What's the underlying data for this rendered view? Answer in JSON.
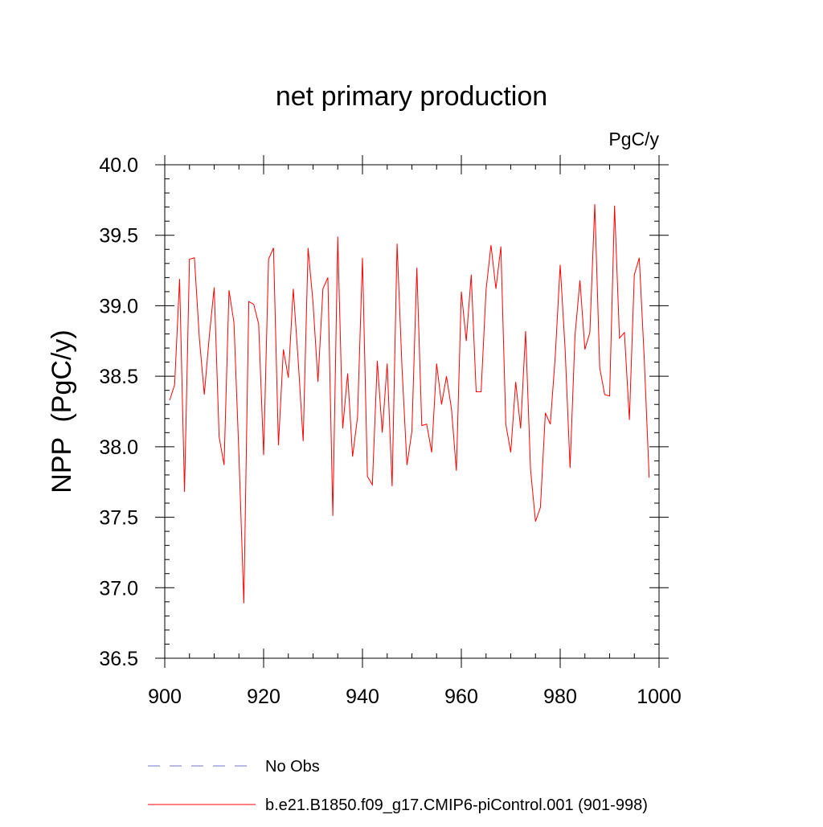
{
  "colors": {
    "series_line": "#ff0000",
    "obs_line": "#7070c0",
    "axis": "#000000",
    "background": "#ffffff"
  },
  "legend": {
    "obs_label": "No Obs",
    "model_label": "b.e21.B1850.f09_g17.CMIP6-piControl.001 (901-998)"
  },
  "chart_data": {
    "type": "line",
    "title": "net primary production",
    "units_label": "PgC/y",
    "xlabel": "",
    "ylabel": "NPP  (PgC/y)",
    "xlim": [
      900,
      1000
    ],
    "ylim": [
      36.5,
      40.0
    ],
    "x_ticks": [
      900,
      920,
      940,
      960,
      980,
      1000
    ],
    "x_tick_labels": [
      "900",
      "920",
      "940",
      "960",
      "980",
      "1000"
    ],
    "y_ticks": [
      36.5,
      37.0,
      37.5,
      38.0,
      38.5,
      39.0,
      39.5,
      40.0
    ],
    "y_tick_labels": [
      "36.5",
      "37.0",
      "37.5",
      "38.0",
      "38.5",
      "39.0",
      "39.5",
      "40.0"
    ],
    "grid": false,
    "legend_position": "bottom",
    "series": [
      {
        "name": "b.e21.B1850.f09_g17.CMIP6-piControl.001 (901-998)",
        "x": [
          901,
          902,
          903,
          904,
          905,
          906,
          907,
          908,
          909,
          910,
          911,
          912,
          913,
          914,
          915,
          916,
          917,
          918,
          919,
          920,
          921,
          922,
          923,
          924,
          925,
          926,
          927,
          928,
          929,
          930,
          931,
          932,
          933,
          934,
          935,
          936,
          937,
          938,
          939,
          940,
          941,
          942,
          943,
          944,
          945,
          946,
          947,
          948,
          949,
          950,
          951,
          952,
          953,
          954,
          955,
          956,
          957,
          958,
          959,
          960,
          961,
          962,
          963,
          964,
          965,
          966,
          967,
          968,
          969,
          970,
          971,
          972,
          973,
          974,
          975,
          976,
          977,
          978,
          979,
          980,
          981,
          982,
          983,
          984,
          985,
          986,
          987,
          988,
          989,
          990,
          991,
          992,
          993,
          994,
          995,
          996,
          997,
          998
        ],
        "values": [
          38.33,
          38.44,
          39.19,
          37.68,
          39.33,
          39.34,
          38.77,
          38.37,
          38.78,
          39.13,
          38.07,
          37.87,
          39.11,
          38.88,
          37.95,
          36.89,
          39.03,
          39.01,
          38.87,
          37.94,
          39.33,
          39.41,
          38.01,
          38.69,
          38.49,
          39.12,
          38.61,
          38.04,
          39.41,
          39.02,
          38.46,
          39.12,
          39.2,
          37.51,
          39.49,
          38.13,
          38.52,
          37.93,
          38.21,
          39.34,
          37.79,
          37.73,
          38.61,
          38.1,
          38.59,
          37.72,
          39.44,
          38.56,
          37.87,
          38.11,
          39.27,
          38.15,
          38.16,
          37.96,
          38.59,
          38.3,
          38.5,
          38.27,
          37.83,
          39.1,
          38.75,
          39.22,
          38.39,
          38.39,
          39.11,
          39.43,
          39.12,
          39.42,
          38.16,
          37.96,
          38.46,
          38.13,
          38.82,
          37.84,
          37.47,
          37.57,
          38.24,
          38.16,
          38.64,
          39.29,
          38.69,
          37.85,
          38.79,
          39.18,
          38.69,
          38.81,
          39.72,
          38.56,
          38.37,
          38.36,
          39.71,
          38.77,
          38.81,
          38.19,
          39.22,
          39.34,
          38.63,
          37.78
        ]
      },
      {
        "name": "No Obs",
        "x": [],
        "values": []
      }
    ]
  }
}
